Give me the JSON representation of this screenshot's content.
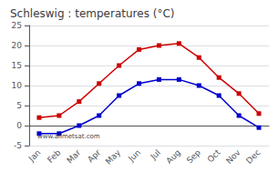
{
  "chart_data": {
    "type": "line",
    "title": "Schleswig : temperatures (°C)",
    "categories": [
      "Jan",
      "Feb",
      "Mar",
      "Apr",
      "May",
      "Jun",
      "Jul",
      "Aug",
      "Sep",
      "Oct",
      "Nov",
      "Dec"
    ],
    "series": [
      {
        "color": "#cc0000",
        "values": [
          2,
          2.5,
          6,
          10.5,
          15,
          19,
          20,
          20.5,
          17,
          12,
          8,
          3
        ]
      },
      {
        "color": "#0000cc",
        "values": [
          -2,
          -2,
          0,
          2.5,
          7.5,
          10.5,
          11.5,
          11.5,
          10,
          7.5,
          2.5,
          -0.5
        ]
      }
    ],
    "ylim": [
      -5,
      25
    ],
    "yticks": [
      -5,
      0,
      5,
      10,
      15,
      20,
      25
    ],
    "grid": true,
    "marker": "square",
    "annotation": "www.allmetsat.com"
  }
}
